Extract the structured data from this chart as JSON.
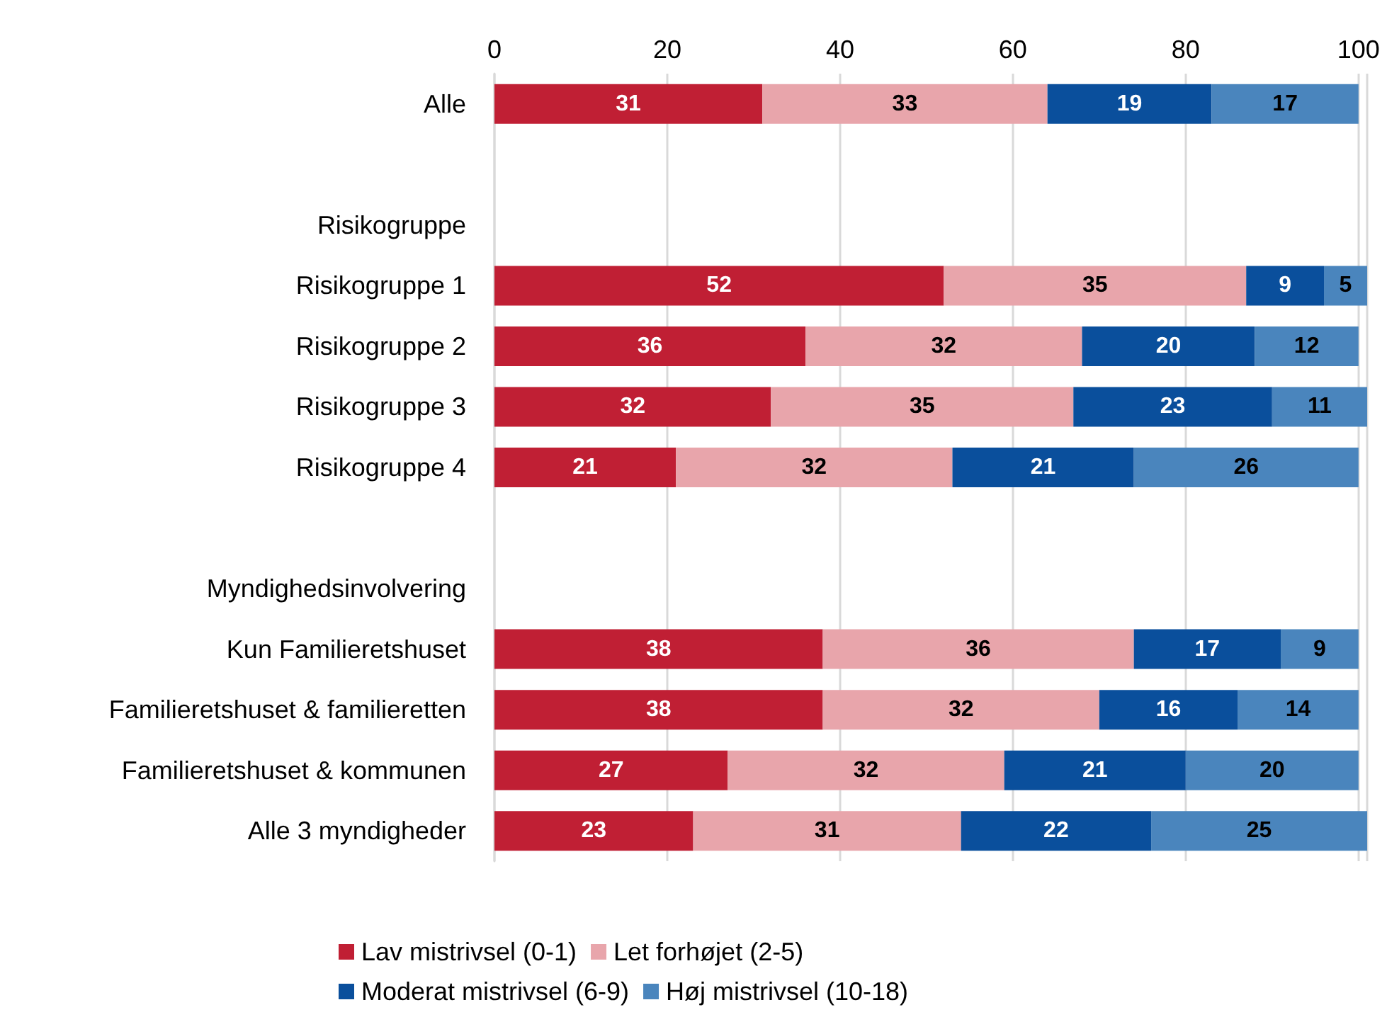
{
  "chart_data": {
    "type": "bar",
    "orientation": "horizontal",
    "stacked": true,
    "categories": [
      "Alle",
      null,
      "Risikogruppe",
      "Risikogruppe 1",
      "Risikogruppe 2",
      "Risikogruppe 3",
      "Risikogruppe 4",
      null,
      "Myndighedsinvolvering",
      "Kun Familieretshuset",
      "Familieretshuset & familieretten",
      "Familieretshuset & kommunen",
      "Alle 3 myndigheder"
    ],
    "series": [
      {
        "name": "Lav mistrivsel (0-1)",
        "color": "#c01f34",
        "values": [
          31,
          null,
          null,
          52,
          36,
          32,
          21,
          null,
          null,
          38,
          38,
          27,
          23
        ]
      },
      {
        "name": "Let forhøjet (2-5)",
        "color": "#e8a5ab",
        "values": [
          33,
          null,
          null,
          35,
          32,
          35,
          32,
          null,
          null,
          36,
          32,
          32,
          31
        ]
      },
      {
        "name": "Moderat mistrivsel (6-9)",
        "color": "#0a4f9c",
        "values": [
          19,
          null,
          null,
          9,
          20,
          23,
          21,
          null,
          null,
          17,
          16,
          21,
          22
        ]
      },
      {
        "name": "Høj mistrivsel (10-18)",
        "color": "#4a85bd",
        "values": [
          17,
          null,
          null,
          5,
          12,
          11,
          26,
          null,
          null,
          9,
          14,
          20,
          25
        ]
      }
    ],
    "xlim": [
      0,
      101
    ],
    "xticks": [
      0,
      20,
      40,
      60,
      80,
      100
    ],
    "grid": "x",
    "legend": "bottom",
    "data_labels": true
  }
}
